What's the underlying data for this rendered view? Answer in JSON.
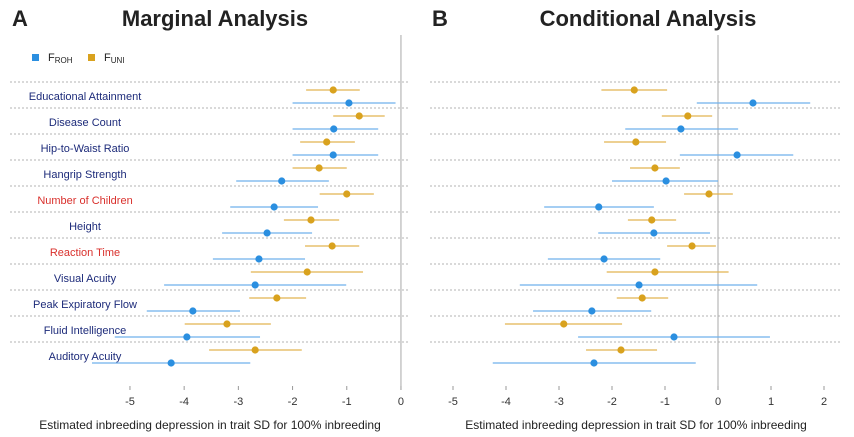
{
  "chart_data": [
    {
      "type": "forest",
      "panel": "A",
      "title": "Marginal Analysis",
      "x_label": "Estimated inbreeding depression in trait SD for 100% inbreeding",
      "categories": [
        "Educational Attainment",
        "Disease Count",
        "Hip-to-Waist Ratio",
        "Hangrip Strength",
        "Number of Children",
        "Height",
        "Reaction Time",
        "Visual Acuity",
        "Peak Expiratory Flow",
        "Fluid Intelligence",
        "Auditory Acuity"
      ],
      "category_colors": [
        "#1d2b7a",
        "#1d2b7a",
        "#1d2b7a",
        "#1d2b7a",
        "#d9302c",
        "#1d2b7a",
        "#d9302c",
        "#1d2b7a",
        "#1d2b7a",
        "#1d2b7a",
        "#1d2b7a"
      ],
      "legend": true,
      "series": [
        {
          "name": "F",
          "subscript": "ROH",
          "color": "#2b8fe0",
          "ci_color": "#6fb1ec",
          "values": [
            -0.96,
            -1.24,
            -1.25,
            -2.2,
            -2.34,
            -2.47,
            -2.62,
            -2.69,
            -3.84,
            -3.95,
            -4.24
          ],
          "lower": [
            -2.0,
            -2.0,
            -2.0,
            -3.04,
            -3.15,
            -3.3,
            -3.47,
            -4.37,
            -4.69,
            -5.28,
            -5.7
          ],
          "upper": [
            -0.1,
            -0.42,
            -0.42,
            -1.33,
            -1.53,
            -1.64,
            -1.77,
            -1.01,
            -2.97,
            -2.6,
            -2.78
          ]
        },
        {
          "name": "F",
          "subscript": "UNI",
          "color": "#d9a21e",
          "ci_color": "#e2b450",
          "values": [
            -1.25,
            -0.77,
            -1.37,
            -1.51,
            -1.0,
            -1.66,
            -1.27,
            -1.73,
            -2.29,
            -3.21,
            -2.69
          ],
          "lower": [
            -1.75,
            -1.25,
            -1.86,
            -2.0,
            -1.5,
            -2.16,
            -1.77,
            -2.77,
            -2.8,
            -3.99,
            -3.54
          ],
          "upper": [
            -0.76,
            -0.3,
            -0.85,
            -1.0,
            -0.5,
            -1.14,
            -0.77,
            -0.7,
            -1.75,
            -2.4,
            -1.83
          ]
        }
      ],
      "xlim": [
        -5.8,
        0.2
      ],
      "xticks": [
        -5,
        -4,
        -3,
        -2,
        -1,
        0
      ],
      "zero_line": 0
    },
    {
      "type": "forest",
      "panel": "B",
      "title": "Conditional Analysis",
      "x_label": "Estimated inbreeding depression in trait SD for 100% inbreeding",
      "categories": [
        null,
        null,
        null,
        null,
        null,
        null,
        null,
        null,
        null,
        null,
        null
      ],
      "legend": false,
      "series": [
        {
          "name": "F",
          "subscript": "ROH",
          "color": "#2b8fe0",
          "ci_color": "#6fb1ec",
          "values": [
            0.66,
            -0.7,
            0.36,
            -0.98,
            -2.25,
            -1.21,
            -2.15,
            -1.49,
            -2.38,
            -0.83,
            -2.34
          ],
          "lower": [
            -0.4,
            -1.75,
            -0.72,
            -2.0,
            -3.28,
            -2.26,
            -3.21,
            -3.74,
            -3.49,
            -2.64,
            -4.25
          ],
          "upper": [
            1.74,
            0.38,
            1.42,
            0,
            -1.21,
            -0.15,
            -1.09,
            0.74,
            -1.26,
            0.98,
            -0.42
          ]
        },
        {
          "name": "F",
          "subscript": "UNI",
          "color": "#d9a21e",
          "ci_color": "#e2b450",
          "values": [
            -1.58,
            -0.57,
            -1.55,
            -1.19,
            -0.17,
            -1.25,
            -0.49,
            -1.19,
            -1.43,
            -2.91,
            -1.83
          ],
          "lower": [
            -2.2,
            -1.06,
            -2.15,
            -1.66,
            -0.64,
            -1.7,
            -0.96,
            -2.1,
            -1.91,
            -4.02,
            -2.49
          ],
          "upper": [
            -0.96,
            -0.11,
            -0.98,
            -0.72,
            0.28,
            -0.79,
            -0.04,
            0.2,
            -0.94,
            -1.81,
            -1.15
          ]
        }
      ],
      "xlim": [
        -5.4,
        2.3
      ],
      "xticks": [
        -5,
        -4,
        -3,
        -2,
        -1,
        0,
        1,
        2
      ],
      "zero_line": 0
    }
  ]
}
